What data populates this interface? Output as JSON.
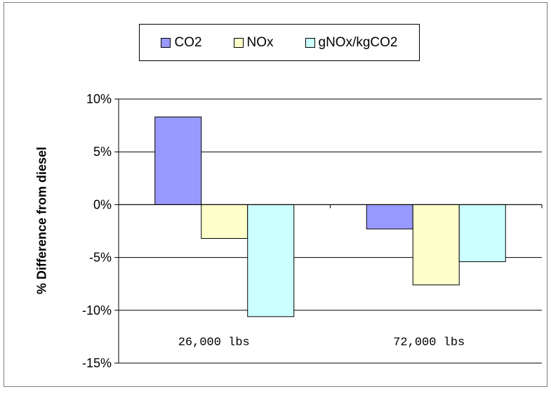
{
  "chart_data": {
    "type": "bar",
    "title": "",
    "xlabel": "",
    "ylabel": "% Difference from diesel",
    "categories": [
      "26,000 lbs",
      "72,000 lbs"
    ],
    "series": [
      {
        "name": "CO2",
        "values": [
          8.3,
          -2.3
        ],
        "color": "#9999ff"
      },
      {
        "name": "NOx",
        "values": [
          -3.2,
          -7.6
        ],
        "color": "#ffffcc"
      },
      {
        "name": "gNOx/kgCO2",
        "values": [
          -10.6,
          -5.4
        ],
        "color": "#ccffff"
      }
    ],
    "ylim": [
      -15,
      10
    ],
    "yticks": [
      "10%",
      "5%",
      "0%",
      "-5%",
      "-10%",
      "-15%"
    ],
    "ytick_values": [
      10,
      5,
      0,
      -5,
      -10,
      -15
    ],
    "grid": true,
    "legend": "top"
  }
}
